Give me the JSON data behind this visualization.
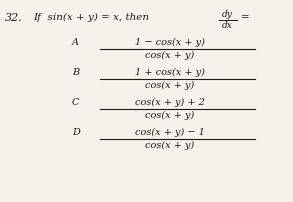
{
  "question_number": "32.",
  "question_intro": "If",
  "question_eq": "sin(x + y) = x, then",
  "dy_text": "dy",
  "dx_text": "dx",
  "equals": "=",
  "bg_color": "#f5f2ec",
  "text_color": "#1a1a1a",
  "options": [
    {
      "label": "A",
      "numerator": "1 − cos(x + y)",
      "denominator": "cos(x + y)"
    },
    {
      "label": "B",
      "numerator": "1 + cos(x + y)",
      "denominator": "cos(x + y)"
    },
    {
      "label": "C",
      "numerator": "cos(x + y) + 2",
      "denominator": "cos(x + y)"
    },
    {
      "label": "D",
      "numerator": "cos(x + y) − 1",
      "denominator": "cos(x + y)"
    }
  ],
  "figsize": [
    2.93,
    2.03
  ],
  "dpi": 100
}
